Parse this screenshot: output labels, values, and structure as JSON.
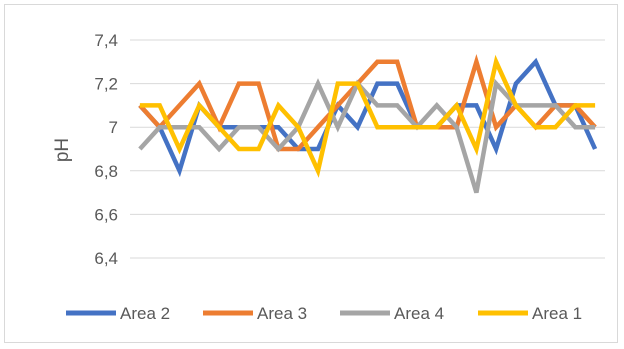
{
  "chart_data": {
    "type": "line",
    "title": "",
    "xlabel": "",
    "ylabel": "pH",
    "ylim": [
      6.4,
      7.4
    ],
    "yticks": [
      "6,4",
      "6,6",
      "6,8",
      "7",
      "7,2",
      "7,4"
    ],
    "grid": "horizontal",
    "legend_position": "bottom",
    "series": [
      {
        "name": "Area 2",
        "color": "#4472C4",
        "values": [
          7.1,
          7.0,
          6.8,
          7.1,
          7.0,
          7.0,
          7.0,
          7.0,
          6.9,
          6.9,
          7.1,
          7.0,
          7.2,
          7.2,
          7.0,
          7.0,
          7.1,
          7.1,
          6.9,
          7.2,
          7.3,
          7.1,
          7.1,
          6.9
        ]
      },
      {
        "name": "Area 3",
        "color": "#ED7D31",
        "values": [
          7.1,
          7.0,
          7.1,
          7.2,
          7.0,
          7.2,
          7.2,
          6.9,
          6.9,
          7.0,
          7.1,
          7.2,
          7.3,
          7.3,
          7.0,
          7.0,
          7.0,
          7.3,
          7.0,
          7.1,
          7.0,
          7.1,
          7.1,
          7.0
        ]
      },
      {
        "name": "Area 4",
        "color": "#A5A5A5",
        "values": [
          6.9,
          7.0,
          7.0,
          7.0,
          6.9,
          7.0,
          7.0,
          6.9,
          7.0,
          7.2,
          7.0,
          7.2,
          7.1,
          7.1,
          7.0,
          7.1,
          7.0,
          6.7,
          7.2,
          7.1,
          7.1,
          7.1,
          7.0,
          7.0
        ]
      },
      {
        "name": "Area 1",
        "color": "#FFC000",
        "values": [
          7.1,
          7.1,
          6.9,
          7.1,
          7.0,
          6.9,
          6.9,
          7.1,
          7.0,
          6.8,
          7.2,
          7.2,
          7.0,
          7.0,
          7.0,
          7.0,
          7.1,
          6.9,
          7.3,
          7.1,
          7.0,
          7.0,
          7.1,
          7.1
        ]
      }
    ]
  }
}
